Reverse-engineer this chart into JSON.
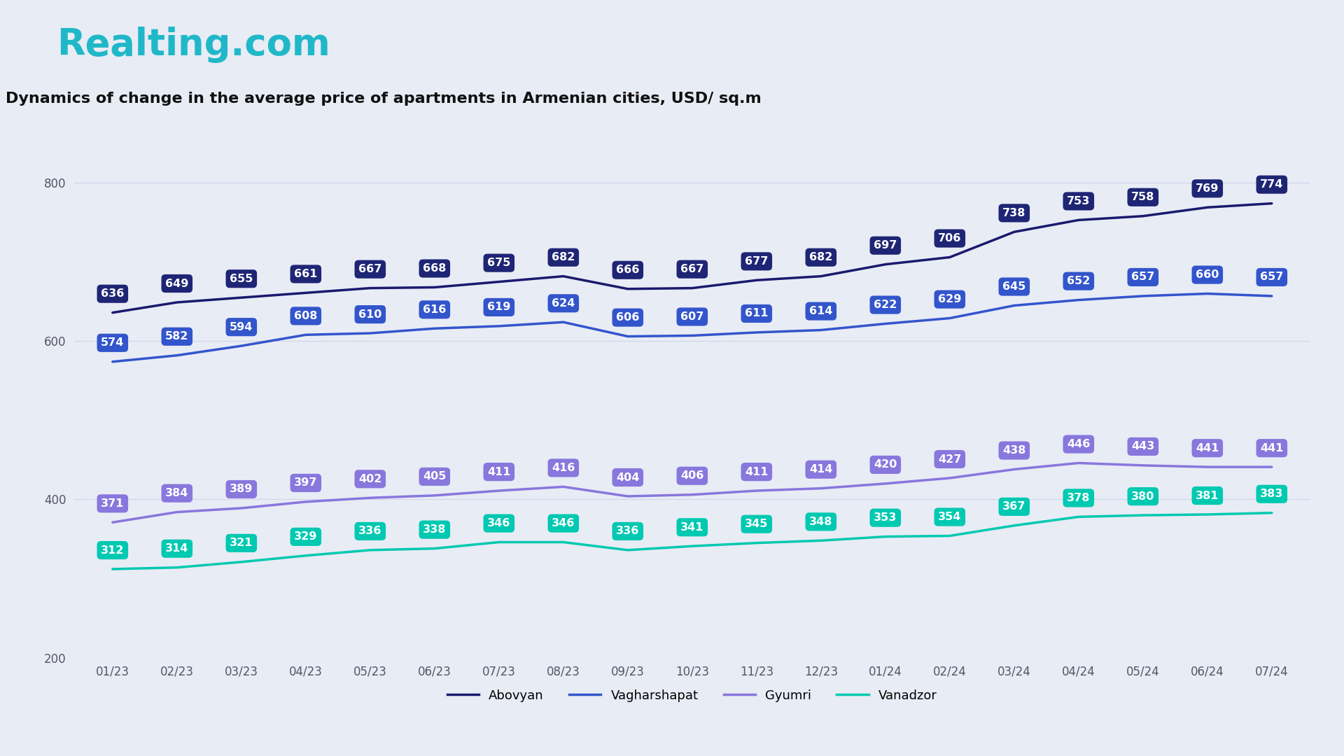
{
  "title": "Dynamics of change in the average price of apartments in Armenian cities, USD/ sq.m",
  "logo_text": "Realting.com",
  "background_color": "#e8ecf5",
  "x_labels": [
    "01/23",
    "02/23",
    "03/23",
    "04/23",
    "05/23",
    "06/23",
    "07/23",
    "08/23",
    "09/23",
    "10/23",
    "11/23",
    "12/23",
    "01/24",
    "02/24",
    "03/24",
    "04/24",
    "05/24",
    "06/24",
    "07/24"
  ],
  "series": [
    {
      "name": "Abovyan",
      "color": "#1a1a6e",
      "label_bg": "#1f2575",
      "label_fg": "#ffffff",
      "values": [
        636,
        649,
        655,
        661,
        667,
        668,
        675,
        682,
        666,
        667,
        677,
        682,
        697,
        706,
        738,
        753,
        758,
        769,
        774
      ]
    },
    {
      "name": "Vagharshapat",
      "color": "#3355cc",
      "label_bg": "#3355cc",
      "label_fg": "#ffffff",
      "values": [
        574,
        582,
        594,
        608,
        610,
        616,
        619,
        624,
        606,
        607,
        611,
        614,
        622,
        629,
        645,
        652,
        657,
        660,
        657
      ]
    },
    {
      "name": "Gyumri",
      "color": "#8877dd",
      "label_bg": "#8877dd",
      "label_fg": "#ffffff",
      "values": [
        371,
        384,
        389,
        397,
        402,
        405,
        411,
        416,
        404,
        406,
        411,
        414,
        420,
        427,
        438,
        446,
        443,
        441,
        441
      ]
    },
    {
      "name": "Vanadzor",
      "color": "#00c9b1",
      "label_bg": "#00c9b1",
      "label_fg": "#ffffff",
      "values": [
        312,
        314,
        321,
        329,
        336,
        338,
        346,
        346,
        336,
        341,
        345,
        348,
        353,
        354,
        367,
        378,
        380,
        381,
        383
      ]
    }
  ],
  "ylim": [
    200,
    840
  ],
  "yticks": [
    200,
    400,
    600,
    800
  ],
  "grid_color": "#d0d4e8",
  "logo_color": "#20b8c8",
  "title_color": "#111111",
  "title_fontsize": 16,
  "logo_fontsize": 38,
  "axis_label_fontsize": 12,
  "data_label_fontsize": 11.5
}
